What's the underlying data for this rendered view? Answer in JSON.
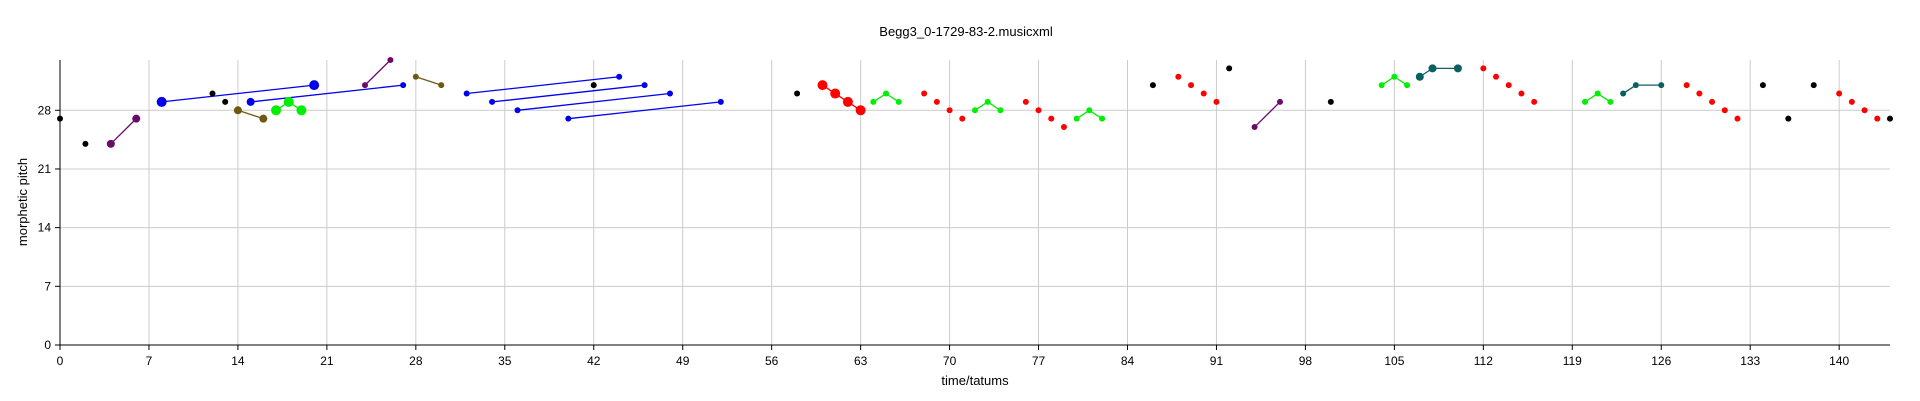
{
  "chart_data": {
    "type": "scatter",
    "title": "Begg3_0-1729-83-2.musicxml",
    "xlabel": "time/tatums",
    "ylabel": "morphetic pitch",
    "xlim": [
      0,
      144
    ],
    "ylim": [
      0,
      34
    ],
    "xticks": [
      0,
      7,
      14,
      21,
      28,
      35,
      42,
      49,
      56,
      63,
      70,
      77,
      84,
      91,
      98,
      105,
      112,
      119,
      126,
      133,
      140
    ],
    "yticks": [
      0,
      7,
      14,
      21,
      28
    ],
    "grid": true,
    "colors": {
      "black": "#000000",
      "blue": "#0000ee",
      "red": "#ff0000",
      "green": "#00ee00",
      "purple": "#6a0a6a",
      "olive": "#6b5a10",
      "teal": "#0a6060",
      "grid": "#cccccc"
    },
    "points": [
      {
        "x": 0,
        "y": 27,
        "color": "black",
        "size": 3
      },
      {
        "x": 2,
        "y": 24,
        "color": "black",
        "size": 3
      },
      {
        "x": 4,
        "y": 24,
        "color": "purple",
        "size": 4
      },
      {
        "x": 6,
        "y": 27,
        "color": "purple",
        "size": 4
      },
      {
        "x": 8,
        "y": 29,
        "color": "blue",
        "size": 5
      },
      {
        "x": 12,
        "y": 30,
        "color": "black",
        "size": 3
      },
      {
        "x": 13,
        "y": 29,
        "color": "black",
        "size": 3
      },
      {
        "x": 14,
        "y": 28,
        "color": "olive",
        "size": 4
      },
      {
        "x": 15,
        "y": 29,
        "color": "blue",
        "size": 4
      },
      {
        "x": 16,
        "y": 27,
        "color": "olive",
        "size": 4
      },
      {
        "x": 17,
        "y": 28,
        "color": "green",
        "size": 5
      },
      {
        "x": 18,
        "y": 29,
        "color": "green",
        "size": 5
      },
      {
        "x": 19,
        "y": 28,
        "color": "green",
        "size": 5
      },
      {
        "x": 20,
        "y": 31,
        "color": "blue",
        "size": 5
      },
      {
        "x": 24,
        "y": 31,
        "color": "purple",
        "size": 3
      },
      {
        "x": 26,
        "y": 34,
        "color": "purple",
        "size": 3
      },
      {
        "x": 27,
        "y": 31,
        "color": "blue",
        "size": 3
      },
      {
        "x": 28,
        "y": 32,
        "color": "olive",
        "size": 3
      },
      {
        "x": 30,
        "y": 31,
        "color": "olive",
        "size": 3
      },
      {
        "x": 32,
        "y": 30,
        "color": "blue",
        "size": 3
      },
      {
        "x": 34,
        "y": 29,
        "color": "blue",
        "size": 3
      },
      {
        "x": 36,
        "y": 28,
        "color": "blue",
        "size": 3
      },
      {
        "x": 40,
        "y": 27,
        "color": "blue",
        "size": 3
      },
      {
        "x": 42,
        "y": 31,
        "color": "black",
        "size": 3
      },
      {
        "x": 44,
        "y": 32,
        "color": "blue",
        "size": 3
      },
      {
        "x": 46,
        "y": 31,
        "color": "blue",
        "size": 3
      },
      {
        "x": 48,
        "y": 30,
        "color": "blue",
        "size": 3
      },
      {
        "x": 52,
        "y": 29,
        "color": "blue",
        "size": 3
      },
      {
        "x": 58,
        "y": 30,
        "color": "black",
        "size": 3
      },
      {
        "x": 60,
        "y": 31,
        "color": "red",
        "size": 5
      },
      {
        "x": 61,
        "y": 30,
        "color": "red",
        "size": 5
      },
      {
        "x": 62,
        "y": 29,
        "color": "red",
        "size": 5
      },
      {
        "x": 63,
        "y": 28,
        "color": "red",
        "size": 5
      },
      {
        "x": 64,
        "y": 29,
        "color": "green",
        "size": 3
      },
      {
        "x": 65,
        "y": 30,
        "color": "green",
        "size": 3
      },
      {
        "x": 66,
        "y": 29,
        "color": "green",
        "size": 3
      },
      {
        "x": 68,
        "y": 30,
        "color": "red",
        "size": 3
      },
      {
        "x": 69,
        "y": 29,
        "color": "red",
        "size": 3
      },
      {
        "x": 70,
        "y": 28,
        "color": "red",
        "size": 3
      },
      {
        "x": 71,
        "y": 27,
        "color": "red",
        "size": 3
      },
      {
        "x": 72,
        "y": 28,
        "color": "green",
        "size": 3
      },
      {
        "x": 73,
        "y": 29,
        "color": "green",
        "size": 3
      },
      {
        "x": 74,
        "y": 28,
        "color": "green",
        "size": 3
      },
      {
        "x": 76,
        "y": 29,
        "color": "red",
        "size": 3
      },
      {
        "x": 77,
        "y": 28,
        "color": "red",
        "size": 3
      },
      {
        "x": 78,
        "y": 27,
        "color": "red",
        "size": 3
      },
      {
        "x": 79,
        "y": 26,
        "color": "red",
        "size": 3
      },
      {
        "x": 80,
        "y": 27,
        "color": "green",
        "size": 3
      },
      {
        "x": 81,
        "y": 28,
        "color": "green",
        "size": 3
      },
      {
        "x": 82,
        "y": 27,
        "color": "green",
        "size": 3
      },
      {
        "x": 86,
        "y": 31,
        "color": "black",
        "size": 3
      },
      {
        "x": 88,
        "y": 32,
        "color": "red",
        "size": 3
      },
      {
        "x": 89,
        "y": 31,
        "color": "red",
        "size": 3
      },
      {
        "x": 90,
        "y": 30,
        "color": "red",
        "size": 3
      },
      {
        "x": 91,
        "y": 29,
        "color": "red",
        "size": 3
      },
      {
        "x": 92,
        "y": 33,
        "color": "black",
        "size": 3
      },
      {
        "x": 94,
        "y": 26,
        "color": "purple",
        "size": 3
      },
      {
        "x": 96,
        "y": 29,
        "color": "purple",
        "size": 3
      },
      {
        "x": 100,
        "y": 29,
        "color": "black",
        "size": 3
      },
      {
        "x": 104,
        "y": 31,
        "color": "green",
        "size": 3
      },
      {
        "x": 105,
        "y": 32,
        "color": "green",
        "size": 3
      },
      {
        "x": 106,
        "y": 31,
        "color": "green",
        "size": 3
      },
      {
        "x": 107,
        "y": 32,
        "color": "teal",
        "size": 4
      },
      {
        "x": 108,
        "y": 33,
        "color": "teal",
        "size": 4
      },
      {
        "x": 110,
        "y": 33,
        "color": "teal",
        "size": 4
      },
      {
        "x": 112,
        "y": 33,
        "color": "red",
        "size": 3
      },
      {
        "x": 113,
        "y": 32,
        "color": "red",
        "size": 3
      },
      {
        "x": 114,
        "y": 31,
        "color": "red",
        "size": 3
      },
      {
        "x": 115,
        "y": 30,
        "color": "red",
        "size": 3
      },
      {
        "x": 116,
        "y": 29,
        "color": "red",
        "size": 3
      },
      {
        "x": 120,
        "y": 29,
        "color": "green",
        "size": 3
      },
      {
        "x": 121,
        "y": 30,
        "color": "green",
        "size": 3
      },
      {
        "x": 122,
        "y": 29,
        "color": "green",
        "size": 3
      },
      {
        "x": 123,
        "y": 30,
        "color": "teal",
        "size": 3
      },
      {
        "x": 124,
        "y": 31,
        "color": "teal",
        "size": 3
      },
      {
        "x": 126,
        "y": 31,
        "color": "teal",
        "size": 3
      },
      {
        "x": 128,
        "y": 31,
        "color": "red",
        "size": 3
      },
      {
        "x": 129,
        "y": 30,
        "color": "red",
        "size": 3
      },
      {
        "x": 130,
        "y": 29,
        "color": "red",
        "size": 3
      },
      {
        "x": 131,
        "y": 28,
        "color": "red",
        "size": 3
      },
      {
        "x": 132,
        "y": 27,
        "color": "red",
        "size": 3
      },
      {
        "x": 134,
        "y": 31,
        "color": "black",
        "size": 3
      },
      {
        "x": 136,
        "y": 27,
        "color": "black",
        "size": 3
      },
      {
        "x": 138,
        "y": 31,
        "color": "black",
        "size": 3
      },
      {
        "x": 140,
        "y": 30,
        "color": "red",
        "size": 3
      },
      {
        "x": 141,
        "y": 29,
        "color": "red",
        "size": 3
      },
      {
        "x": 142,
        "y": 28,
        "color": "red",
        "size": 3
      },
      {
        "x": 143,
        "y": 27,
        "color": "red",
        "size": 3
      },
      {
        "x": 144,
        "y": 27,
        "color": "black",
        "size": 3
      }
    ],
    "segments": [
      {
        "x1": 4,
        "y1": 24,
        "x2": 6,
        "y2": 27,
        "color": "purple"
      },
      {
        "x1": 8,
        "y1": 29,
        "x2": 20,
        "y2": 31,
        "color": "blue"
      },
      {
        "x1": 15,
        "y1": 29,
        "x2": 27,
        "y2": 31,
        "color": "blue"
      },
      {
        "x1": 14,
        "y1": 28,
        "x2": 16,
        "y2": 27,
        "color": "olive"
      },
      {
        "x1": 17,
        "y1": 28,
        "x2": 18,
        "y2": 29,
        "color": "green"
      },
      {
        "x1": 18,
        "y1": 29,
        "x2": 19,
        "y2": 28,
        "color": "green"
      },
      {
        "x1": 24,
        "y1": 31,
        "x2": 26,
        "y2": 34,
        "color": "purple"
      },
      {
        "x1": 28,
        "y1": 32,
        "x2": 30,
        "y2": 31,
        "color": "olive"
      },
      {
        "x1": 32,
        "y1": 30,
        "x2": 44,
        "y2": 32,
        "color": "blue"
      },
      {
        "x1": 34,
        "y1": 29,
        "x2": 46,
        "y2": 31,
        "color": "blue"
      },
      {
        "x1": 36,
        "y1": 28,
        "x2": 48,
        "y2": 30,
        "color": "blue"
      },
      {
        "x1": 40,
        "y1": 27,
        "x2": 52,
        "y2": 29,
        "color": "blue"
      },
      {
        "x1": 60,
        "y1": 31,
        "x2": 63,
        "y2": 28,
        "color": "red"
      },
      {
        "x1": 64,
        "y1": 29,
        "x2": 65,
        "y2": 30,
        "color": "green"
      },
      {
        "x1": 65,
        "y1": 30,
        "x2": 66,
        "y2": 29,
        "color": "green"
      },
      {
        "x1": 72,
        "y1": 28,
        "x2": 73,
        "y2": 29,
        "color": "green"
      },
      {
        "x1": 73,
        "y1": 29,
        "x2": 74,
        "y2": 28,
        "color": "green"
      },
      {
        "x1": 80,
        "y1": 27,
        "x2": 81,
        "y2": 28,
        "color": "green"
      },
      {
        "x1": 81,
        "y1": 28,
        "x2": 82,
        "y2": 27,
        "color": "green"
      },
      {
        "x1": 94,
        "y1": 26,
        "x2": 96,
        "y2": 29,
        "color": "purple"
      },
      {
        "x1": 104,
        "y1": 31,
        "x2": 105,
        "y2": 32,
        "color": "green"
      },
      {
        "x1": 105,
        "y1": 32,
        "x2": 106,
        "y2": 31,
        "color": "green"
      },
      {
        "x1": 107,
        "y1": 32,
        "x2": 108,
        "y2": 33,
        "color": "teal"
      },
      {
        "x1": 108,
        "y1": 33,
        "x2": 110,
        "y2": 33,
        "color": "teal"
      },
      {
        "x1": 120,
        "y1": 29,
        "x2": 121,
        "y2": 30,
        "color": "green"
      },
      {
        "x1": 121,
        "y1": 30,
        "x2": 122,
        "y2": 29,
        "color": "green"
      },
      {
        "x1": 123,
        "y1": 30,
        "x2": 124,
        "y2": 31,
        "color": "teal"
      },
      {
        "x1": 124,
        "y1": 31,
        "x2": 126,
        "y2": 31,
        "color": "teal"
      }
    ]
  }
}
